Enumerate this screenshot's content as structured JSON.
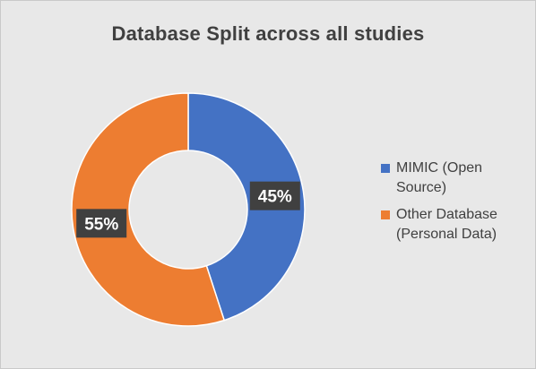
{
  "chart_data": {
    "type": "pie",
    "variant": "doughnut",
    "title": "Database Split across all studies",
    "categories": [
      "MIMIC (Open Source)",
      "Other Database (Personal Data)"
    ],
    "values": [
      45,
      55
    ],
    "data_labels": [
      "45%",
      "55%"
    ],
    "colors": [
      "#4472C4",
      "#ED7D31"
    ],
    "legend_position": "right"
  },
  "legend": {
    "items": [
      {
        "line1": "MIMIC (Open",
        "line2": "Source)"
      },
      {
        "line1": "Other Database",
        "line2": "(Personal Data)"
      }
    ]
  }
}
